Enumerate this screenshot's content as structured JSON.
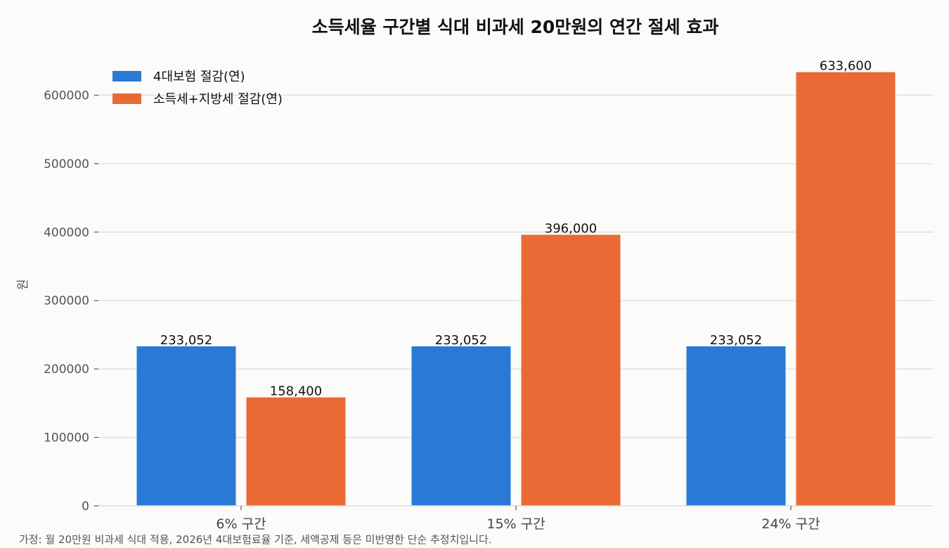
{
  "chart_data": {
    "type": "bar",
    "title": "소득세율 구간별 식대 비과세 20만원의 연간 절세 효과",
    "xlabel": "",
    "ylabel": "원",
    "categories": [
      "6% 구간",
      "15% 구간",
      "24% 구간"
    ],
    "series": [
      {
        "name": "4대보험 절감(연)",
        "values": [
          233052,
          233052,
          233052
        ],
        "color": "#2a79d6",
        "labels": [
          "233,052",
          "233,052",
          "233,052"
        ]
      },
      {
        "name": "소득세+지방세 절감(연)",
        "values": [
          158400,
          396000,
          633600
        ],
        "color": "#ea6a35",
        "labels": [
          "158,400",
          "396,000",
          "633,600"
        ]
      }
    ],
    "ylim": [
      0,
      660000
    ],
    "yticks": [
      0,
      100000,
      200000,
      300000,
      400000,
      500000,
      600000
    ],
    "ytick_labels": [
      "0",
      "100000",
      "200000",
      "300000",
      "400000",
      "500000",
      "600000"
    ],
    "grid": "y",
    "legend": "top-left"
  },
  "footnote": "가정: 월 20만원 비과세 식대 적용, 2026년 4대보험료율 기준, 세액공제 등은 미반영한 단순 추정치입니다."
}
